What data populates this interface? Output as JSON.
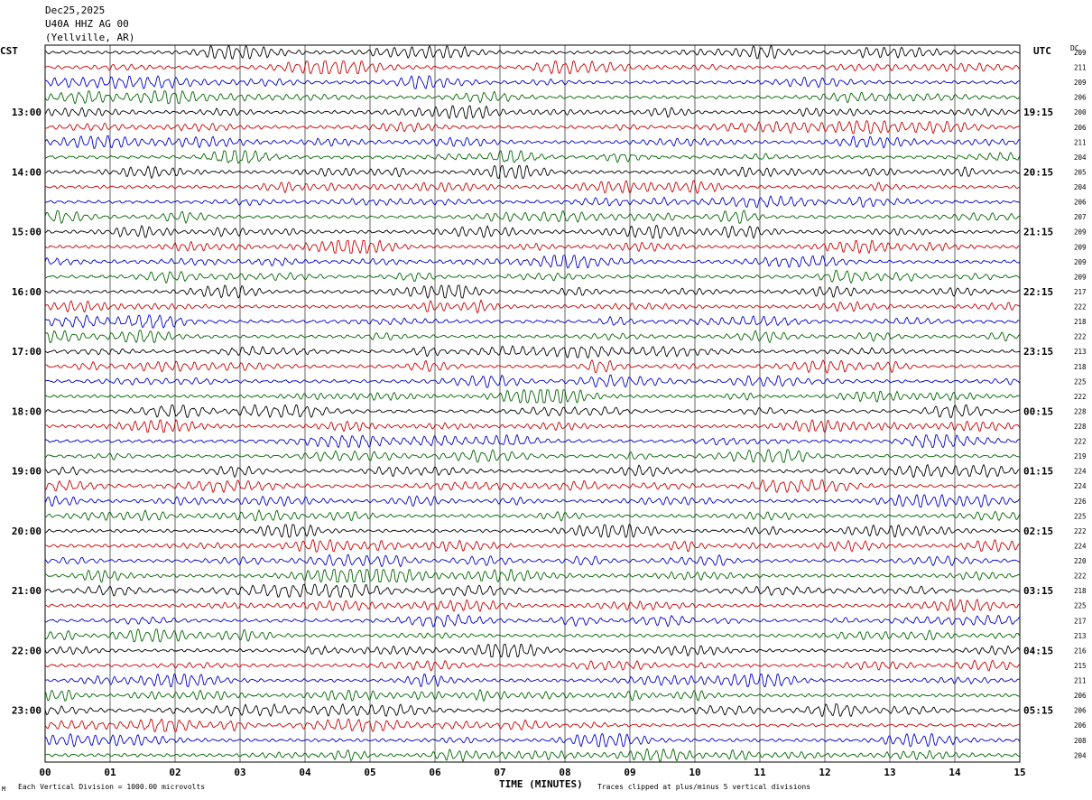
{
  "header": {
    "date": "Dec25,2025",
    "station": "U40A HHZ AG 00",
    "location": "(Yellville, AR)"
  },
  "left_axis_title": "CST",
  "right_axis_title": "UTC",
  "dc_title": "DC",
  "footer": {
    "scale_note": "Each Vertical Division = 1000.00 microvolts",
    "clip_note": "Traces clipped at plus/minus 5 vertical divisions",
    "corner_mark": "M"
  },
  "colors": {
    "cycle": [
      "#000000",
      "#cc0000",
      "#0000cc",
      "#006600"
    ],
    "grid": "#000000",
    "background": "#ffffff"
  },
  "chart_data": {
    "type": "line",
    "title": "U40A HHZ AG 00 (Yellville, AR) Dec25,2025",
    "xlabel": "TIME (MINUTES)",
    "x_ticks": [
      "00",
      "01",
      "02",
      "03",
      "04",
      "05",
      "06",
      "07",
      "08",
      "09",
      "10",
      "11",
      "12",
      "13",
      "14",
      "15"
    ],
    "xlim": [
      0,
      15
    ],
    "rows_per_hour": 4,
    "row_minutes": 15,
    "left_labels": [
      "13:00",
      "14:00",
      "15:00",
      "16:00",
      "17:00",
      "18:00",
      "19:00",
      "20:00",
      "21:00",
      "22:00",
      "23:00"
    ],
    "right_labels": [
      "19:15",
      "20:15",
      "21:15",
      "22:15",
      "23:15",
      "00:15",
      "01:15",
      "02:15",
      "03:15",
      "04:15",
      "05:15"
    ],
    "first_labeled_row": 4,
    "dc_offsets": [
      "209",
      "211",
      "209",
      "206",
      "200",
      "206",
      "211",
      "204",
      "205",
      "204",
      "206",
      "207",
      "209",
      "209",
      "209",
      "209",
      "217",
      "222",
      "218",
      "222",
      "213",
      "218",
      "225",
      "222",
      "228",
      "228",
      "222",
      "219",
      "224",
      "224",
      "226",
      "225",
      "222",
      "224",
      "220",
      "222",
      "218",
      "225",
      "217",
      "213",
      "216",
      "215",
      "211",
      "206",
      "206",
      "206",
      "208",
      "204"
    ]
  }
}
